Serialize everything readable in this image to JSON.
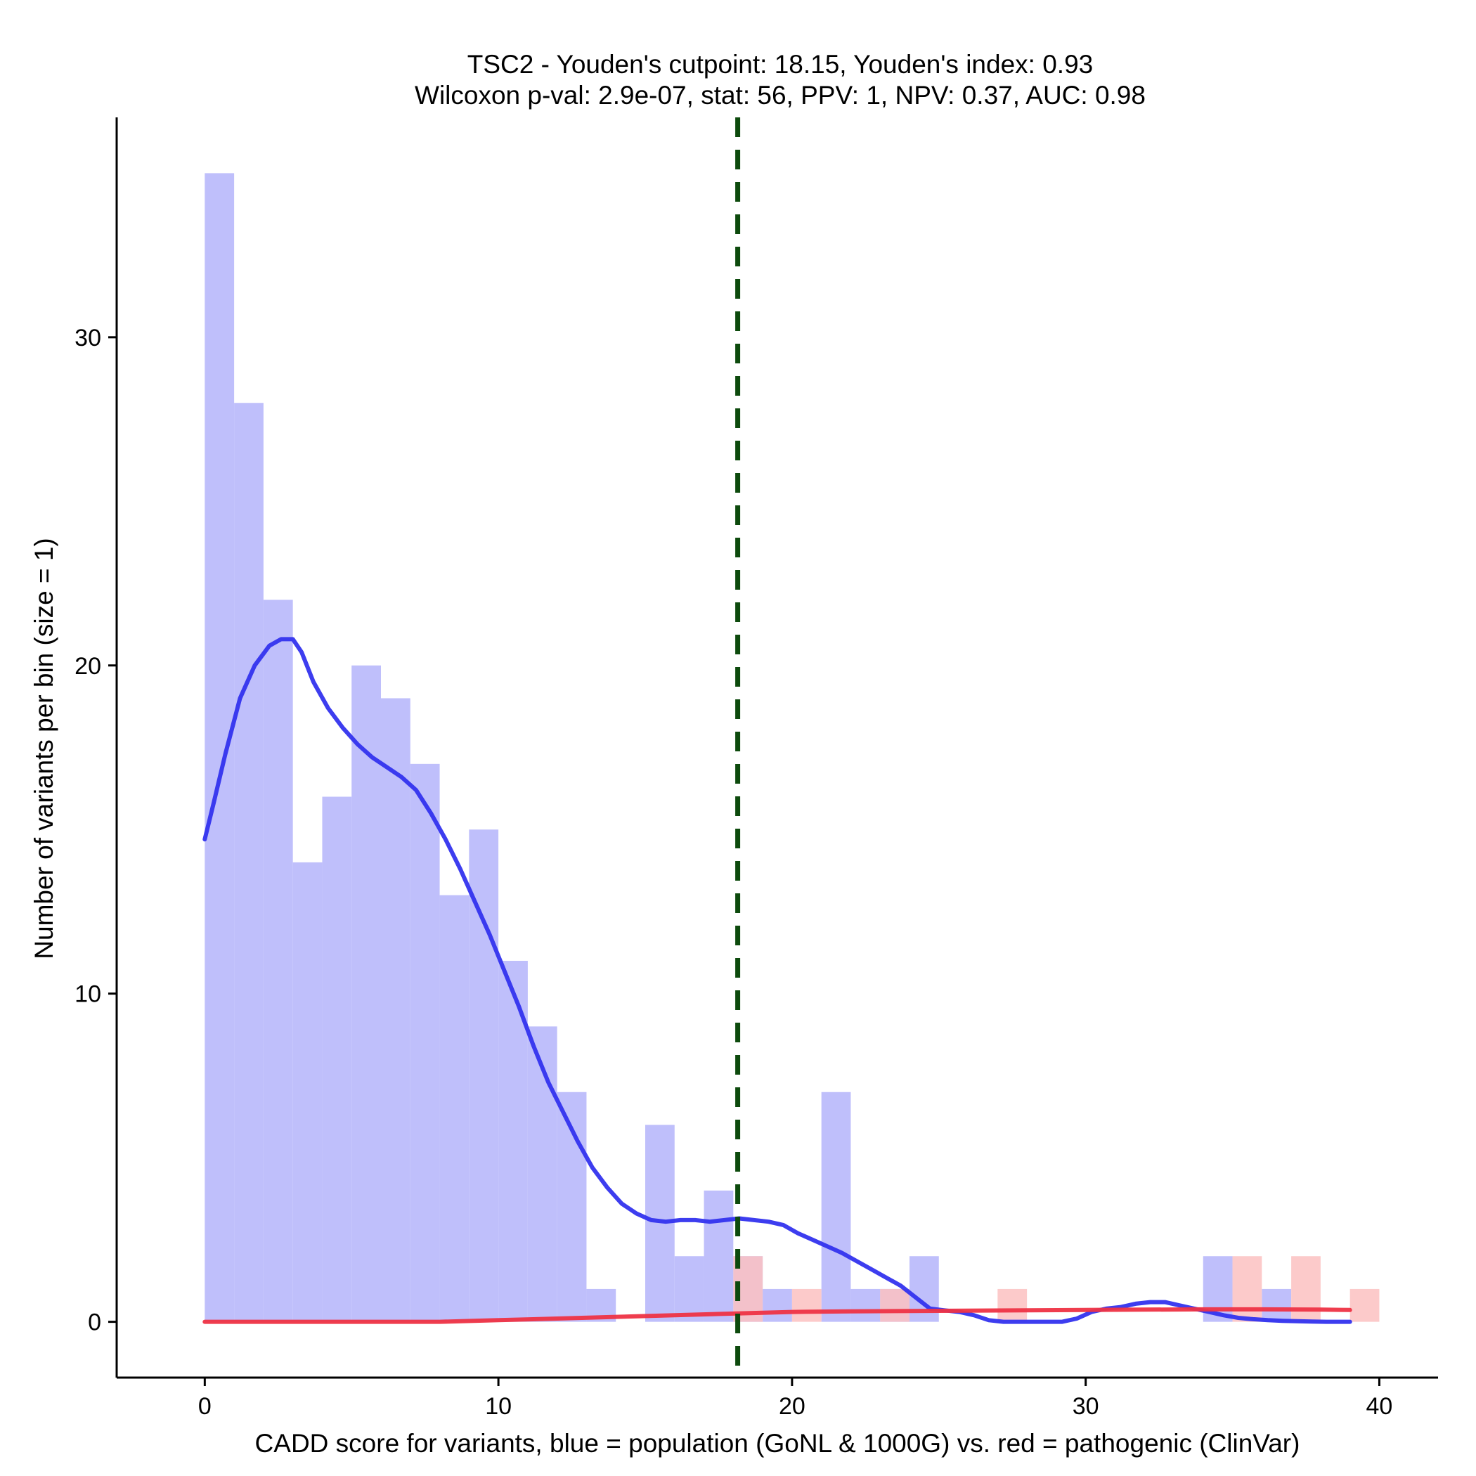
{
  "chart_data": {
    "type": "bar",
    "title": "TSC2 - Youden's cutpoint: 18.15, Youden's index: 0.93",
    "subtitle": "Wilcoxon p-val: 2.9e-07, stat: 56, PPV: 1, NPV: 0.37, AUC: 0.98",
    "xlabel": "CADD score for variants, blue = population (GoNL & 1000G) vs. red = pathogenic (ClinVar)",
    "ylabel": "Number of variants per bin (size = 1)",
    "xlim": [
      -3,
      42
    ],
    "ylim": [
      -1.7,
      36.7
    ],
    "x_ticks": [
      0,
      10,
      20,
      30,
      40
    ],
    "y_ticks": [
      0,
      10,
      20,
      30
    ],
    "bin_width": 1,
    "grid": false,
    "legend": "none",
    "colors": {
      "population_bar": "#bfbffb",
      "pathogenic_bar": "#fbc1c1",
      "population_density": "#3333ee",
      "pathogenic_density": "#ee3344",
      "cutpoint_line": "#0d4a0d"
    },
    "series": [
      {
        "kind": "histogram",
        "bin_starts": [
          0,
          1,
          2,
          3,
          4,
          5,
          6,
          7,
          8,
          9,
          10,
          11,
          12,
          13,
          15,
          16,
          17,
          18,
          19,
          21,
          22,
          23,
          24,
          34,
          36
        ],
        "values": [
          35,
          28,
          22,
          14,
          16,
          20,
          19,
          17,
          13,
          15,
          11,
          9,
          7,
          1,
          6,
          2,
          4,
          2,
          1,
          7,
          1,
          1,
          2,
          2,
          1
        ]
      },
      {
        "kind": "histogram",
        "bin_starts": [
          18,
          20,
          23,
          27,
          35,
          37,
          39
        ],
        "values": [
          2,
          1,
          1,
          1,
          2,
          2,
          1
        ]
      },
      {
        "kind": "density",
        "x": [
          0,
          0.3,
          0.7,
          1.2,
          1.7,
          2.2,
          2.6,
          3.0,
          3.3,
          3.7,
          4.2,
          4.7,
          5.2,
          5.7,
          6.2,
          6.7,
          7.2,
          7.7,
          8.2,
          8.7,
          9.2,
          9.7,
          10.2,
          10.7,
          11.2,
          11.7,
          12.2,
          12.7,
          13.2,
          13.7,
          14.2,
          14.7,
          15.2,
          15.7,
          16.2,
          16.7,
          17.2,
          17.7,
          18.2,
          18.7,
          19.2,
          19.7,
          20.2,
          20.7,
          21.2,
          21.7,
          22.2,
          22.7,
          23.2,
          23.7,
          24.2,
          24.7,
          25.2,
          25.7,
          26.2,
          26.7,
          27.2,
          27.7,
          28.2,
          28.7,
          29.2,
          29.7,
          30.2,
          30.7,
          31.2,
          31.7,
          32.2,
          32.7,
          33.2,
          33.7,
          34.2,
          34.7,
          35.2,
          35.7,
          36.2,
          36.7,
          37.2,
          37.7,
          38.2,
          38.7,
          39.0
        ],
        "y": [
          14.7,
          15.8,
          17.3,
          19.0,
          20.0,
          20.6,
          20.8,
          20.8,
          20.4,
          19.5,
          18.7,
          18.1,
          17.6,
          17.2,
          16.9,
          16.6,
          16.2,
          15.5,
          14.7,
          13.8,
          12.8,
          11.8,
          10.7,
          9.6,
          8.4,
          7.3,
          6.4,
          5.5,
          4.7,
          4.1,
          3.6,
          3.3,
          3.1,
          3.05,
          3.1,
          3.1,
          3.05,
          3.1,
          3.15,
          3.1,
          3.05,
          2.95,
          2.7,
          2.5,
          2.3,
          2.1,
          1.85,
          1.6,
          1.35,
          1.1,
          0.75,
          0.4,
          0.35,
          0.3,
          0.2,
          0.05,
          0.0,
          0.0,
          0.0,
          0.0,
          0.0,
          0.1,
          0.3,
          0.4,
          0.45,
          0.55,
          0.6,
          0.6,
          0.5,
          0.4,
          0.3,
          0.2,
          0.12,
          0.08,
          0.05,
          0.03,
          0.02,
          0.01,
          0.0,
          0.0,
          0.0
        ]
      },
      {
        "kind": "density",
        "x": [
          0,
          2,
          4,
          6,
          8,
          10,
          12,
          14,
          16,
          18,
          20,
          22,
          24,
          26,
          28,
          30,
          32,
          34,
          36,
          38,
          39
        ],
        "y": [
          0.0,
          0.0,
          0.0,
          0.0,
          0.0,
          0.05,
          0.1,
          0.15,
          0.2,
          0.25,
          0.3,
          0.32,
          0.33,
          0.34,
          0.35,
          0.36,
          0.37,
          0.38,
          0.38,
          0.37,
          0.36
        ]
      }
    ],
    "cutpoint": 18.15
  }
}
